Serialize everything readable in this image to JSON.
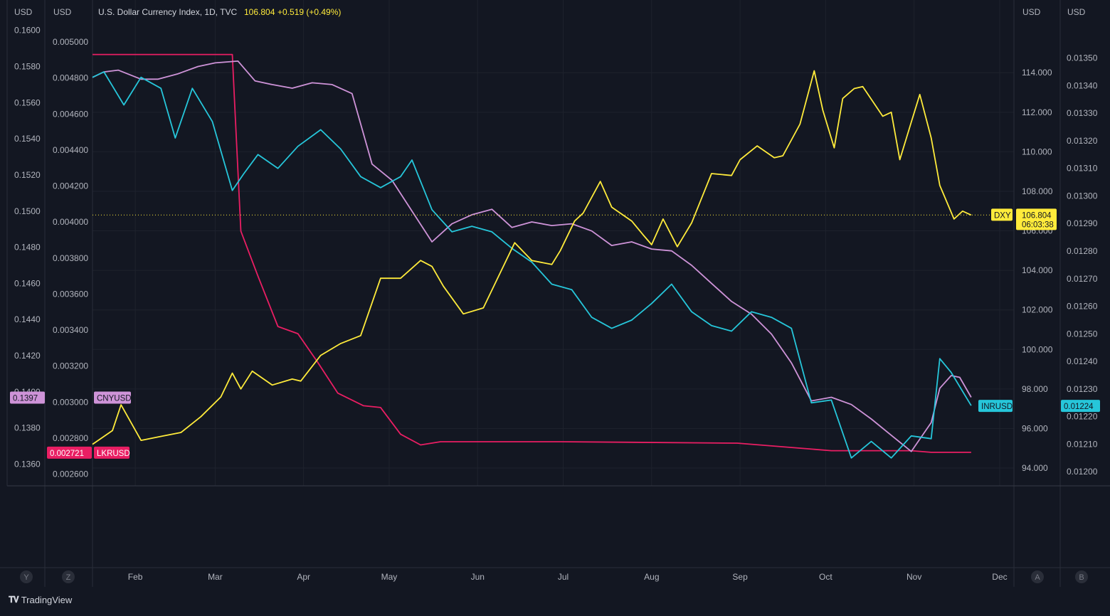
{
  "header": {
    "title": "U.S. Dollar Currency Index, 1D, TVC",
    "price": "106.804",
    "change": "+0.519 (+0.49%)"
  },
  "axes": {
    "unit_labels": [
      "USD",
      "USD",
      "USD",
      "USD"
    ],
    "cny_ticks": [
      "0.1600",
      "0.1580",
      "0.1560",
      "0.1540",
      "0.1520",
      "0.1500",
      "0.1480",
      "0.1460",
      "0.1440",
      "0.1420",
      "0.1400",
      "0.1380",
      "0.1360"
    ],
    "lkr_ticks": [
      "0.005000",
      "0.004800",
      "0.004600",
      "0.004400",
      "0.004200",
      "0.004000",
      "0.003800",
      "0.003600",
      "0.003400",
      "0.003200",
      "0.003000",
      "0.002800",
      "0.002600"
    ],
    "dxy_ticks": [
      "114.000",
      "112.000",
      "110.000",
      "108.000",
      "106.000",
      "104.000",
      "102.000",
      "100.000",
      "98.000",
      "96.000",
      "94.000"
    ],
    "inr_ticks": [
      "0.01350",
      "0.01340",
      "0.01330",
      "0.01320",
      "0.01310",
      "0.01300",
      "0.01290",
      "0.01280",
      "0.01270",
      "0.01260",
      "0.01250",
      "0.01240",
      "0.01230",
      "0.01220",
      "0.01210",
      "0.01200"
    ],
    "months": [
      "Feb",
      "Mar",
      "Apr",
      "May",
      "Jun",
      "Jul",
      "Aug",
      "Sep",
      "Oct",
      "Nov",
      "Dec"
    ],
    "left_buttons": [
      "Y",
      "Z"
    ],
    "right_buttons": [
      "A",
      "B"
    ]
  },
  "labels": {
    "cnyusd_name": "CNYUSD",
    "cnyusd_value": "0.1397",
    "lkrusd_name": "LKRUSD",
    "lkrusd_value": "0.002721",
    "dxy_name": "DXY",
    "dxy_value": "106.804",
    "dxy_countdown": "06:03:38",
    "inrusd_name": "INRUSD",
    "inrusd_value": "0.01224"
  },
  "footer": {
    "brand": "TradingView"
  },
  "colors": {
    "background": "#131722",
    "grid": "#1e222d",
    "dxy": "#ffeb3b",
    "cnyusd": "#ce93d8",
    "lkrusd": "#e91e63",
    "inrusd": "#26c6da",
    "text": "#b2b5be"
  },
  "chart_data": {
    "type": "line",
    "x_axis": {
      "type": "date",
      "tick_labels": [
        "Feb",
        "Mar",
        "Apr",
        "May",
        "Jun",
        "Jul",
        "Aug",
        "Sep",
        "Oct",
        "Nov",
        "Dec"
      ],
      "range": [
        "2022-01-17",
        "2022-12-06"
      ]
    },
    "price_line": {
      "series": "DXY",
      "value": 106.804,
      "style": "dotted"
    },
    "series": [
      {
        "name": "DXY",
        "axis": "dxy",
        "color": "#ffeb3b",
        "points": [
          [
            "2022-01-17",
            95.2
          ],
          [
            "2022-01-24",
            95.9
          ],
          [
            "2022-01-27",
            97.2
          ],
          [
            "2022-02-03",
            95.4
          ],
          [
            "2022-02-10",
            95.6
          ],
          [
            "2022-02-17",
            95.8
          ],
          [
            "2022-02-24",
            96.6
          ],
          [
            "2022-03-03",
            97.6
          ],
          [
            "2022-03-07",
            98.8
          ],
          [
            "2022-03-10",
            98.0
          ],
          [
            "2022-03-14",
            98.9
          ],
          [
            "2022-03-21",
            98.2
          ],
          [
            "2022-03-28",
            98.5
          ],
          [
            "2022-03-31",
            98.4
          ],
          [
            "2022-04-07",
            99.7
          ],
          [
            "2022-04-14",
            100.3
          ],
          [
            "2022-04-21",
            100.7
          ],
          [
            "2022-04-28",
            103.6
          ],
          [
            "2022-05-05",
            103.6
          ],
          [
            "2022-05-12",
            104.5
          ],
          [
            "2022-05-16",
            104.2
          ],
          [
            "2022-05-20",
            103.2
          ],
          [
            "2022-05-27",
            101.8
          ],
          [
            "2022-06-03",
            102.1
          ],
          [
            "2022-06-10",
            104.2
          ],
          [
            "2022-06-14",
            105.4
          ],
          [
            "2022-06-20",
            104.5
          ],
          [
            "2022-06-27",
            104.3
          ],
          [
            "2022-06-30",
            105.0
          ],
          [
            "2022-07-05",
            106.5
          ],
          [
            "2022-07-08",
            106.9
          ],
          [
            "2022-07-14",
            108.5
          ],
          [
            "2022-07-18",
            107.2
          ],
          [
            "2022-07-25",
            106.5
          ],
          [
            "2022-07-29",
            105.8
          ],
          [
            "2022-08-01",
            105.3
          ],
          [
            "2022-08-05",
            106.6
          ],
          [
            "2022-08-10",
            105.2
          ],
          [
            "2022-08-15",
            106.4
          ],
          [
            "2022-08-22",
            108.9
          ],
          [
            "2022-08-29",
            108.8
          ],
          [
            "2022-09-01",
            109.6
          ],
          [
            "2022-09-07",
            110.3
          ],
          [
            "2022-09-13",
            109.7
          ],
          [
            "2022-09-16",
            109.8
          ],
          [
            "2022-09-22",
            111.4
          ],
          [
            "2022-09-27",
            114.1
          ],
          [
            "2022-09-30",
            112.1
          ],
          [
            "2022-10-04",
            110.2
          ],
          [
            "2022-10-07",
            112.7
          ],
          [
            "2022-10-11",
            113.2
          ],
          [
            "2022-10-14",
            113.3
          ],
          [
            "2022-10-21",
            111.8
          ],
          [
            "2022-10-24",
            112.0
          ],
          [
            "2022-10-27",
            109.6
          ],
          [
            "2022-10-31",
            111.5
          ],
          [
            "2022-11-03",
            112.9
          ],
          [
            "2022-11-07",
            110.7
          ],
          [
            "2022-11-10",
            108.3
          ],
          [
            "2022-11-15",
            106.6
          ],
          [
            "2022-11-18",
            107.0
          ],
          [
            "2022-11-21",
            106.8
          ]
        ]
      },
      {
        "name": "CNYUSD",
        "axis": "cny",
        "color": "#ce93d8",
        "points": [
          [
            "2022-01-17",
            0.1574
          ],
          [
            "2022-01-21",
            0.1577
          ],
          [
            "2022-01-26",
            0.1578
          ],
          [
            "2022-02-03",
            0.1573
          ],
          [
            "2022-02-09",
            0.1573
          ],
          [
            "2022-02-16",
            0.1576
          ],
          [
            "2022-02-23",
            0.158
          ],
          [
            "2022-03-01",
            0.1582
          ],
          [
            "2022-03-09",
            0.1583
          ],
          [
            "2022-03-15",
            0.1572
          ],
          [
            "2022-03-21",
            0.157
          ],
          [
            "2022-03-28",
            0.1568
          ],
          [
            "2022-04-04",
            0.1571
          ],
          [
            "2022-04-11",
            0.157
          ],
          [
            "2022-04-18",
            0.1565
          ],
          [
            "2022-04-25",
            0.1526
          ],
          [
            "2022-05-02",
            0.1517
          ],
          [
            "2022-05-09",
            0.15
          ],
          [
            "2022-05-16",
            0.1483
          ],
          [
            "2022-05-23",
            0.1493
          ],
          [
            "2022-05-30",
            0.1498
          ],
          [
            "2022-06-06",
            0.1501
          ],
          [
            "2022-06-13",
            0.1491
          ],
          [
            "2022-06-20",
            0.1494
          ],
          [
            "2022-06-27",
            0.1492
          ],
          [
            "2022-07-04",
            0.1493
          ],
          [
            "2022-07-11",
            0.1489
          ],
          [
            "2022-07-18",
            0.1481
          ],
          [
            "2022-07-25",
            0.1483
          ],
          [
            "2022-08-01",
            0.1479
          ],
          [
            "2022-08-08",
            0.1478
          ],
          [
            "2022-08-15",
            0.147
          ],
          [
            "2022-08-22",
            0.146
          ],
          [
            "2022-08-29",
            0.145
          ],
          [
            "2022-09-05",
            0.1443
          ],
          [
            "2022-09-12",
            0.1432
          ],
          [
            "2022-09-19",
            0.1416
          ],
          [
            "2022-09-26",
            0.1395
          ],
          [
            "2022-10-03",
            0.1397
          ],
          [
            "2022-10-10",
            0.1393
          ],
          [
            "2022-10-17",
            0.1385
          ],
          [
            "2022-10-24",
            0.1376
          ],
          [
            "2022-10-31",
            0.1367
          ],
          [
            "2022-11-07",
            0.1383
          ],
          [
            "2022-11-10",
            0.1402
          ],
          [
            "2022-11-14",
            0.1409
          ],
          [
            "2022-11-17",
            0.1408
          ],
          [
            "2022-11-21",
            0.1397
          ]
        ]
      },
      {
        "name": "LKRUSD",
        "axis": "lkr",
        "color": "#e91e63",
        "points": [
          [
            "2022-01-17",
            0.004931
          ],
          [
            "2022-02-14",
            0.004931
          ],
          [
            "2022-03-07",
            0.004931
          ],
          [
            "2022-03-08",
            0.0046
          ],
          [
            "2022-03-10",
            0.00395
          ],
          [
            "2022-03-16",
            0.0037
          ],
          [
            "2022-03-23",
            0.00342
          ],
          [
            "2022-03-30",
            0.00338
          ],
          [
            "2022-04-06",
            0.00322
          ],
          [
            "2022-04-13",
            0.00305
          ],
          [
            "2022-04-22",
            0.00298
          ],
          [
            "2022-04-28",
            0.00297
          ],
          [
            "2022-05-05",
            0.002822
          ],
          [
            "2022-05-12",
            0.002762
          ],
          [
            "2022-05-19",
            0.00278
          ],
          [
            "2022-06-30",
            0.00278
          ],
          [
            "2022-08-31",
            0.002772
          ],
          [
            "2022-10-03",
            0.00273
          ],
          [
            "2022-10-31",
            0.00273
          ],
          [
            "2022-11-07",
            0.002721
          ],
          [
            "2022-11-21",
            0.002721
          ]
        ]
      },
      {
        "name": "INRUSD",
        "axis": "inr",
        "color": "#26c6da",
        "points": [
          [
            "2022-01-17",
            0.01343
          ],
          [
            "2022-01-21",
            0.01345
          ],
          [
            "2022-01-28",
            0.01333
          ],
          [
            "2022-02-03",
            0.01343
          ],
          [
            "2022-02-10",
            0.01339
          ],
          [
            "2022-02-15",
            0.01321
          ],
          [
            "2022-02-21",
            0.01339
          ],
          [
            "2022-02-28",
            0.01327
          ],
          [
            "2022-03-07",
            0.01302
          ],
          [
            "2022-03-11",
            0.01308
          ],
          [
            "2022-03-16",
            0.01315
          ],
          [
            "2022-03-23",
            0.0131
          ],
          [
            "2022-03-30",
            0.01318
          ],
          [
            "2022-04-07",
            0.01324
          ],
          [
            "2022-04-14",
            0.01317
          ],
          [
            "2022-04-21",
            0.01307
          ],
          [
            "2022-04-28",
            0.01303
          ],
          [
            "2022-05-05",
            0.01307
          ],
          [
            "2022-05-09",
            0.01313
          ],
          [
            "2022-05-16",
            0.01295
          ],
          [
            "2022-05-23",
            0.01287
          ],
          [
            "2022-05-30",
            0.01289
          ],
          [
            "2022-06-06",
            0.01287
          ],
          [
            "2022-06-13",
            0.01281
          ],
          [
            "2022-06-20",
            0.01276
          ],
          [
            "2022-06-27",
            0.01268
          ],
          [
            "2022-07-04",
            0.01266
          ],
          [
            "2022-07-11",
            0.01256
          ],
          [
            "2022-07-18",
            0.01252
          ],
          [
            "2022-07-25",
            0.01255
          ],
          [
            "2022-08-01",
            0.01261
          ],
          [
            "2022-08-08",
            0.01268
          ],
          [
            "2022-08-15",
            0.01258
          ],
          [
            "2022-08-22",
            0.01253
          ],
          [
            "2022-08-29",
            0.01251
          ],
          [
            "2022-09-05",
            0.01258
          ],
          [
            "2022-09-12",
            0.01256
          ],
          [
            "2022-09-19",
            0.01252
          ],
          [
            "2022-09-26",
            0.01225
          ],
          [
            "2022-10-03",
            0.01226
          ],
          [
            "2022-10-10",
            0.01205
          ],
          [
            "2022-10-17",
            0.01211
          ],
          [
            "2022-10-24",
            0.01205
          ],
          [
            "2022-10-31",
            0.01213
          ],
          [
            "2022-11-07",
            0.01212
          ],
          [
            "2022-11-10",
            0.01241
          ],
          [
            "2022-11-14",
            0.01236
          ],
          [
            "2022-11-21",
            0.01224
          ]
        ]
      }
    ],
    "axes": {
      "cny": {
        "side": "left",
        "unit": "USD",
        "range": [
          0.1348,
          0.1605
        ]
      },
      "lkr": {
        "side": "left",
        "unit": "USD",
        "range": [
          0.002535,
          0.005115
        ]
      },
      "dxy": {
        "side": "right",
        "unit": "USD",
        "range": [
          93.1,
          116.6
        ]
      },
      "inr": {
        "side": "right",
        "unit": "USD",
        "range": [
          0.011949,
          0.013633
        ]
      }
    },
    "grid": true
  }
}
